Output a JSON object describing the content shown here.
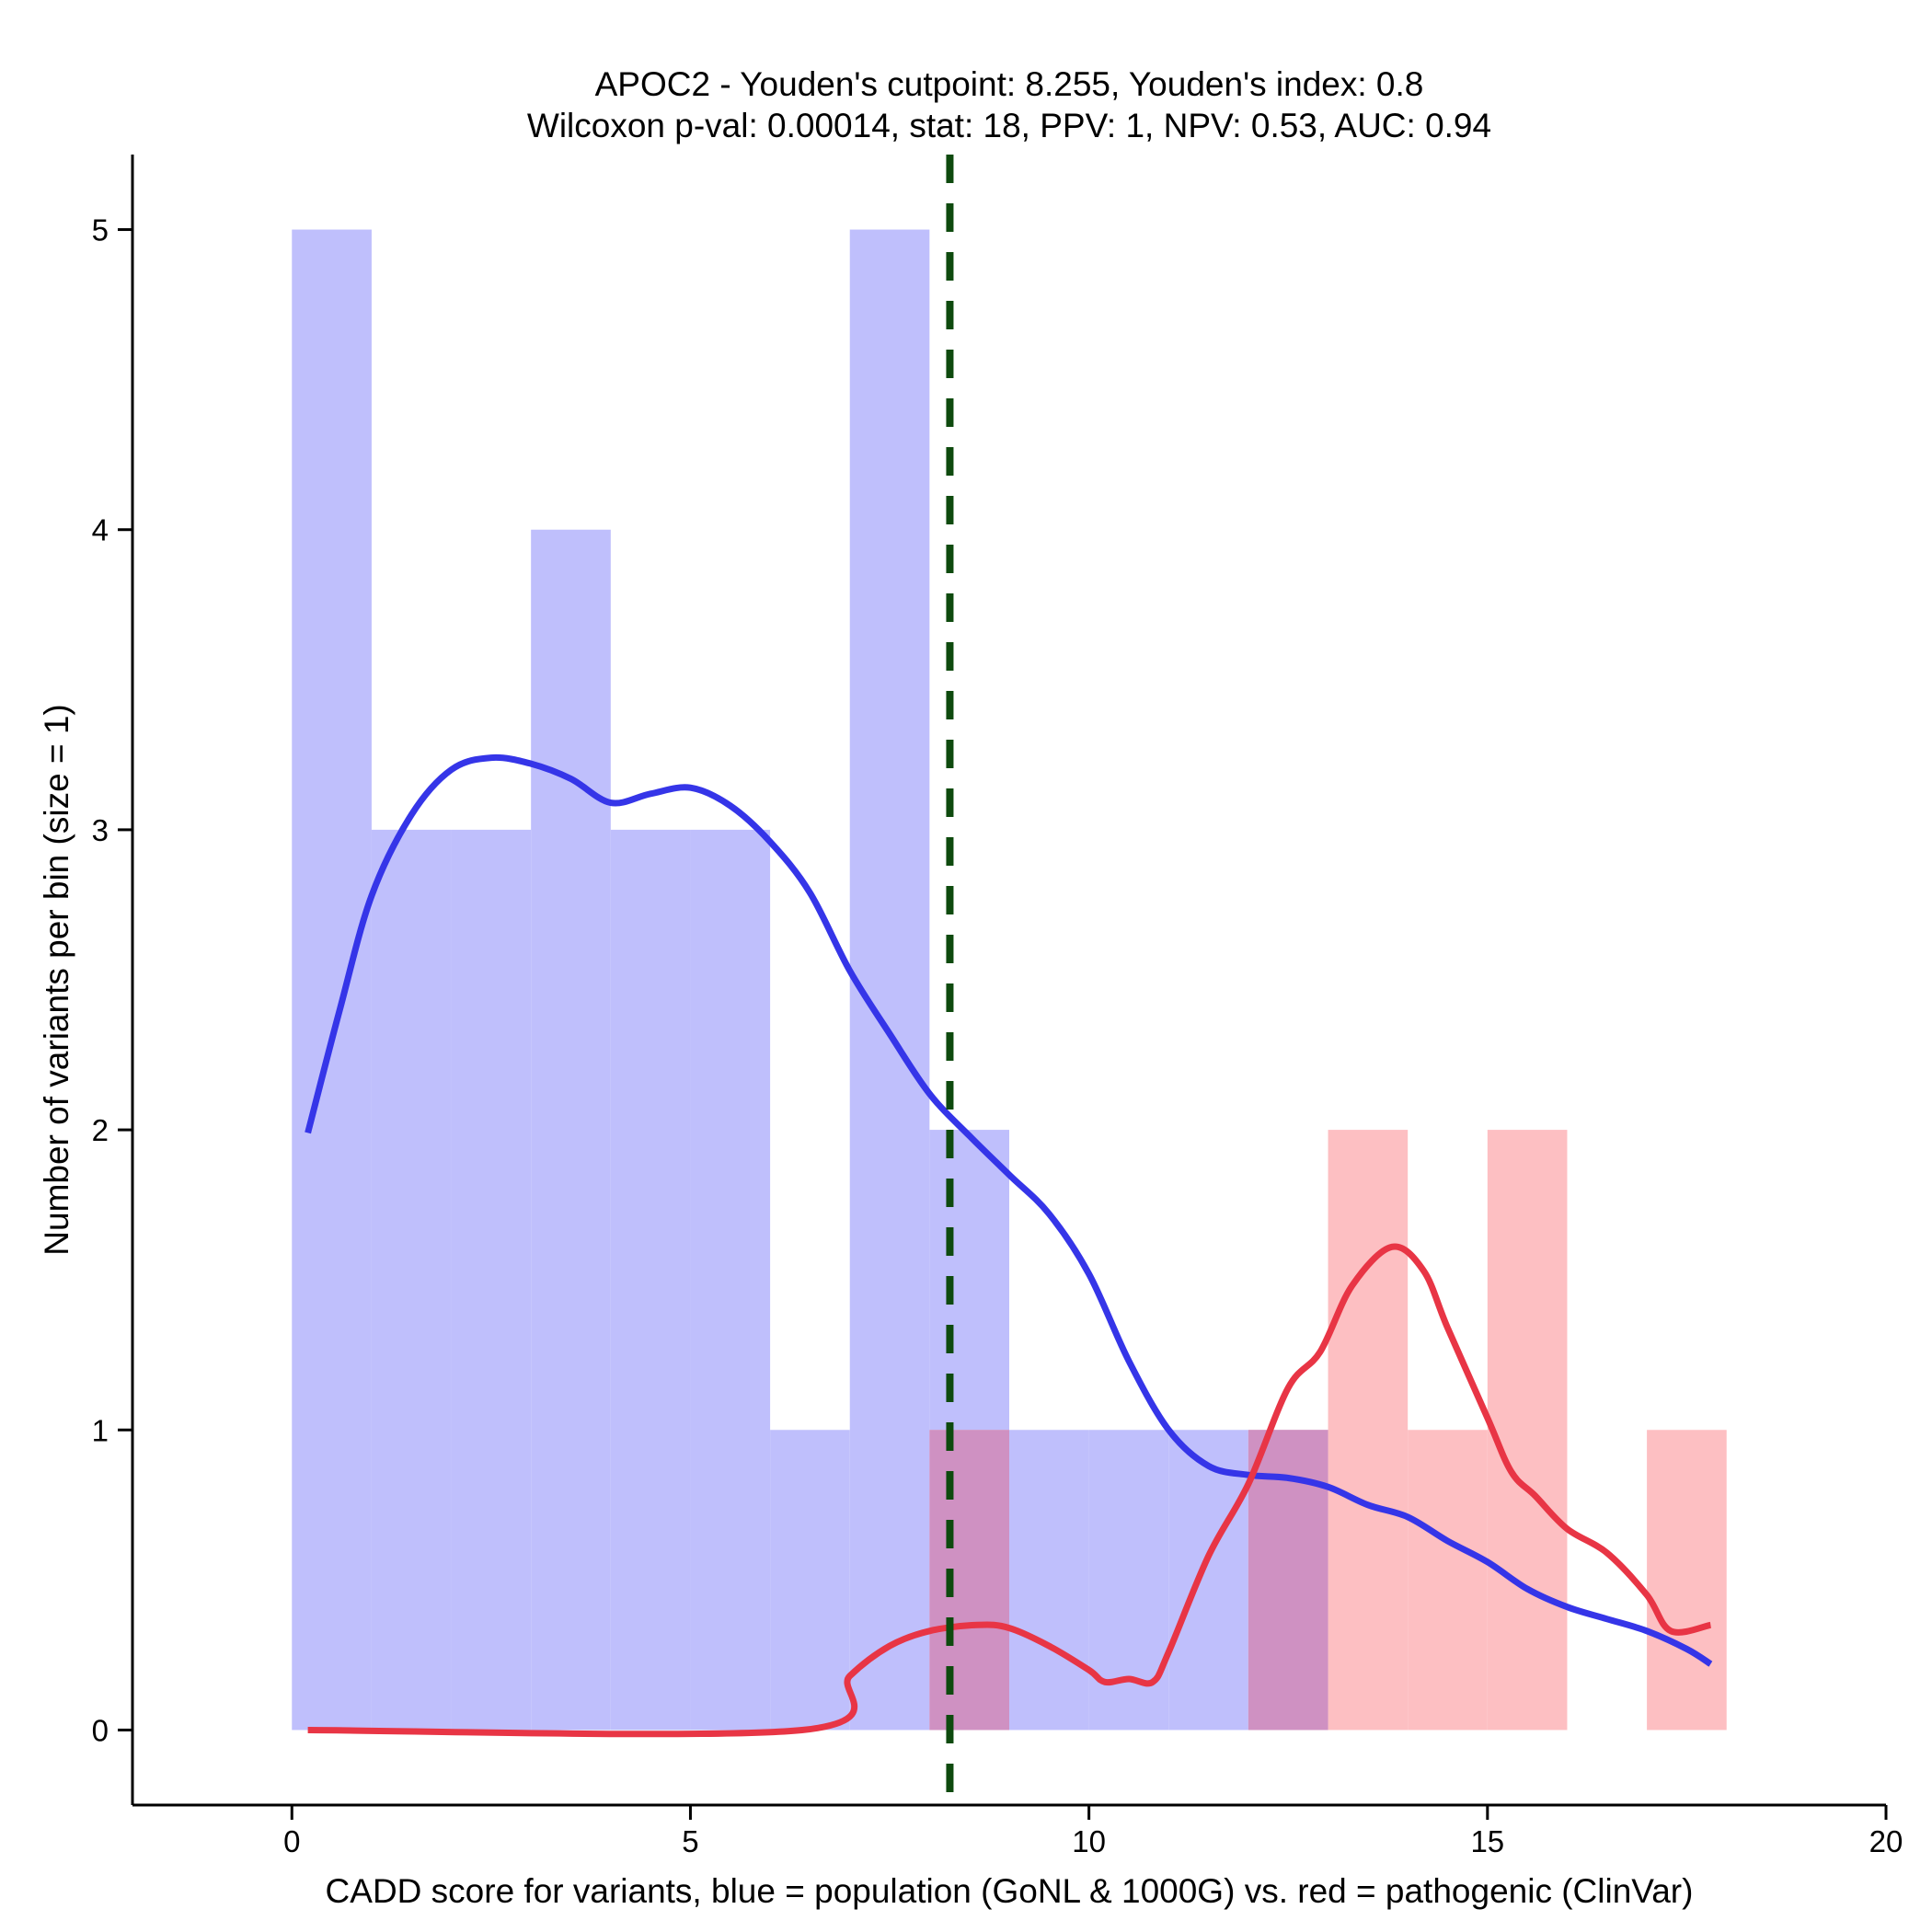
{
  "chart_data": {
    "type": "bar",
    "title": "APOC2 - Youden's cutpoint: 8.255, Youden's index: 0.8",
    "subtitle": "Wilcoxon p-val: 0.00014, stat: 18, PPV: 1, NPV: 0.53, AUC: 0.94",
    "xlabel": "CADD score for variants, blue = population (GoNL & 1000G) vs. red = pathogenic (ClinVar)",
    "ylabel": "Number of variants per bin (size = 1)",
    "xlim": [
      -2,
      20
    ],
    "ylim": [
      -0.25,
      5.25
    ],
    "xticks": [
      0,
      5,
      10,
      15,
      20
    ],
    "yticks": [
      0,
      1,
      2,
      3,
      4,
      5
    ],
    "grid": false,
    "legend": "none",
    "bin_width": 1,
    "series": [
      {
        "colors": {
          "bar": "#bfbffc",
          "line": "#3535e8"
        },
        "bins": [
          [
            0,
            1,
            5
          ],
          [
            1,
            2,
            3
          ],
          [
            2,
            3,
            3
          ],
          [
            3,
            4,
            4
          ],
          [
            4,
            5,
            3
          ],
          [
            5,
            6,
            3
          ],
          [
            6,
            7,
            1
          ],
          [
            7,
            8,
            5
          ],
          [
            8,
            9,
            2
          ],
          [
            9,
            10,
            1
          ],
          [
            10,
            11,
            1
          ],
          [
            11,
            12,
            1
          ],
          [
            12,
            13,
            1
          ]
        ],
        "density": [
          [
            0.2,
            1.99
          ],
          [
            0.6,
            2.4
          ],
          [
            1.0,
            2.78
          ],
          [
            1.5,
            3.05
          ],
          [
            2.0,
            3.2
          ],
          [
            2.5,
            3.24
          ],
          [
            3.0,
            3.22
          ],
          [
            3.5,
            3.17
          ],
          [
            4.0,
            3.09
          ],
          [
            4.5,
            3.12
          ],
          [
            5.0,
            3.14
          ],
          [
            5.5,
            3.08
          ],
          [
            6.0,
            2.96
          ],
          [
            6.5,
            2.79
          ],
          [
            7.0,
            2.53
          ],
          [
            7.5,
            2.32
          ],
          [
            8.0,
            2.12
          ],
          [
            8.5,
            1.98
          ],
          [
            9.0,
            1.85
          ],
          [
            9.5,
            1.72
          ],
          [
            10.0,
            1.52
          ],
          [
            10.5,
            1.23
          ],
          [
            11.0,
            1.0
          ],
          [
            11.5,
            0.88
          ],
          [
            12.0,
            0.85
          ],
          [
            12.5,
            0.84
          ],
          [
            13.0,
            0.81
          ],
          [
            13.5,
            0.75
          ],
          [
            14.0,
            0.71
          ],
          [
            14.5,
            0.63
          ],
          [
            15.0,
            0.56
          ],
          [
            15.5,
            0.47
          ],
          [
            16.0,
            0.41
          ],
          [
            16.5,
            0.37
          ],
          [
            17.0,
            0.33
          ],
          [
            17.5,
            0.27
          ],
          [
            17.8,
            0.22
          ]
        ]
      },
      {
        "colors": {
          "bar": "#fdbfc2",
          "line": "#e83545"
        },
        "bins": [
          [
            8,
            9,
            1
          ],
          [
            12,
            13,
            1
          ],
          [
            13,
            14,
            2
          ],
          [
            14,
            15,
            1
          ],
          [
            15,
            16,
            2
          ],
          [
            17,
            18,
            1
          ]
        ],
        "density": [
          [
            0.2,
            0.0
          ],
          [
            6.4,
            0.0
          ],
          [
            7.0,
            0.18
          ],
          [
            7.5,
            0.28
          ],
          [
            8.0,
            0.33
          ],
          [
            8.6,
            0.35
          ],
          [
            9.0,
            0.34
          ],
          [
            9.5,
            0.28
          ],
          [
            10.0,
            0.2
          ],
          [
            10.2,
            0.16
          ],
          [
            10.5,
            0.17
          ],
          [
            10.8,
            0.16
          ],
          [
            11.0,
            0.26
          ],
          [
            11.5,
            0.58
          ],
          [
            12.0,
            0.82
          ],
          [
            12.5,
            1.14
          ],
          [
            12.9,
            1.26
          ],
          [
            13.3,
            1.48
          ],
          [
            13.8,
            1.61
          ],
          [
            14.2,
            1.53
          ],
          [
            14.5,
            1.34
          ],
          [
            15.0,
            1.04
          ],
          [
            15.3,
            0.86
          ],
          [
            15.6,
            0.78
          ],
          [
            16.0,
            0.67
          ],
          [
            16.5,
            0.59
          ],
          [
            17.0,
            0.45
          ],
          [
            17.3,
            0.33
          ],
          [
            17.8,
            0.35
          ]
        ]
      }
    ],
    "overlap_color": "#cf91c2",
    "cutpoint": {
      "x": 8.255,
      "color": "#0e4a0e"
    }
  }
}
